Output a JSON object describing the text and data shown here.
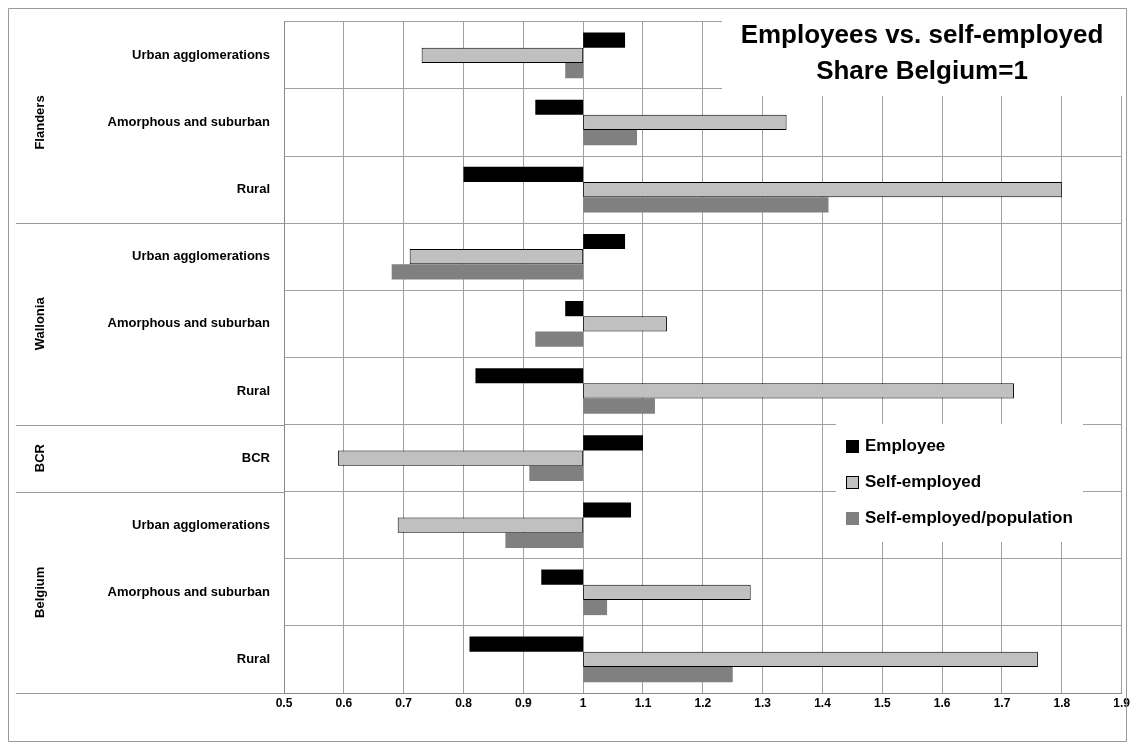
{
  "chart_data": {
    "type": "bar",
    "orientation": "horizontal",
    "title": "Employees vs. self-employed",
    "subtitle": "Share Belgium=1",
    "categories": [
      "Urban agglomerations",
      "Amorphous and suburban",
      "Rural",
      "Urban agglomerations",
      "Amorphous and suburban",
      "Rural",
      "BCR",
      "Urban agglomerations",
      "Amorphous and suburban",
      "Rural"
    ],
    "series": [
      {
        "name": "Employee",
        "color": "#000000",
        "base": [
          1,
          1,
          1,
          1,
          1,
          1,
          1,
          1,
          1,
          1
        ],
        "values": [
          0.07,
          -0.08,
          -0.2,
          0.07,
          -0.03,
          -0.18,
          0.1,
          0.08,
          -0.07,
          -0.19
        ]
      },
      {
        "name": "Self-employed",
        "color": "#c0c0c0",
        "base": [
          1,
          1,
          1,
          1,
          1,
          1,
          1,
          1,
          1,
          1
        ],
        "values": [
          -0.27,
          0.34,
          0.8,
          -0.29,
          0.14,
          0.72,
          -0.41,
          -0.31,
          0.28,
          0.76
        ]
      },
      {
        "name": "Self-employed/population",
        "color": "#808080",
        "base": [
          1,
          1,
          1,
          1,
          1,
          1,
          1,
          1,
          1,
          1
        ],
        "values": [
          -0.03,
          0.09,
          0.41,
          -0.32,
          -0.08,
          0.12,
          -0.09,
          -0.13,
          0.04,
          0.25
        ]
      }
    ],
    "annotations": [
      "Flanders",
      "Wallonia",
      "BCR",
      "Belgium"
    ],
    "xlim": [
      0.5,
      1.9
    ],
    "xticks": [
      0.5,
      0.6,
      0.7,
      0.8,
      0.9,
      1,
      1.1,
      1.2,
      1.3,
      1.4,
      1.5,
      1.6,
      1.7,
      1.8,
      1.9
    ],
    "grid": true,
    "legend": "right"
  }
}
